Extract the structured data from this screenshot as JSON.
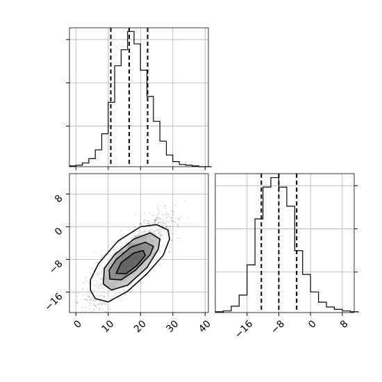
{
  "chart_data": [
    {
      "type": "histogram",
      "panel": "marginal-x",
      "grid": true,
      "bin_edges": [
        -2,
        0,
        2,
        4,
        6,
        8,
        10,
        12,
        14,
        16,
        18,
        20,
        22,
        24,
        26,
        28,
        30,
        32,
        34,
        36,
        38,
        40,
        42
      ],
      "counts": [
        1,
        2,
        5,
        11,
        23,
        45,
        88,
        138,
        160,
        185,
        168,
        132,
        96,
        62,
        35,
        16,
        7,
        3,
        2,
        1,
        0,
        0
      ],
      "quantiles": [
        10.8,
        16.5,
        22.2
      ],
      "xlim": [
        -2,
        41
      ],
      "ylim": [
        0,
        190
      ]
    },
    {
      "type": "histogram2d",
      "panel": "joint",
      "grid": true,
      "x_ticks": [
        0,
        10,
        20,
        30,
        40
      ],
      "y_ticks": [
        -16,
        -8,
        0,
        8
      ],
      "xlim": [
        -2,
        41
      ],
      "ylim": [
        -21,
        13
      ],
      "mean": [
        16.5,
        -8.0
      ],
      "density_bins": [
        {
          "x": 12,
          "y": -10,
          "w": 2,
          "h": 2,
          "level": 0.55
        },
        {
          "x": 14,
          "y": -10,
          "w": 2,
          "h": 2,
          "level": 0.7
        },
        {
          "x": 14,
          "y": -8,
          "w": 2,
          "h": 2,
          "level": 0.85
        },
        {
          "x": 16,
          "y": -8,
          "w": 2,
          "h": 2,
          "level": 0.9
        },
        {
          "x": 16,
          "y": -6,
          "w": 2,
          "h": 2,
          "level": 0.8
        },
        {
          "x": 18,
          "y": -6,
          "w": 2,
          "h": 2,
          "level": 0.75
        },
        {
          "x": 12,
          "y": -12,
          "w": 2,
          "h": 2,
          "level": 0.5
        },
        {
          "x": 14,
          "y": -12,
          "w": 2,
          "h": 2,
          "level": 0.55
        },
        {
          "x": 18,
          "y": -8,
          "w": 2,
          "h": 2,
          "level": 0.7
        },
        {
          "x": 12,
          "y": -8,
          "w": 2,
          "h": 2,
          "level": 0.4
        },
        {
          "x": 18,
          "y": -4,
          "w": 2,
          "h": 2,
          "level": 0.45
        },
        {
          "x": 20,
          "y": -4,
          "w": 2,
          "h": 2,
          "level": 0.4
        },
        {
          "x": 10,
          "y": -12,
          "w": 2,
          "h": 2,
          "level": 0.3
        },
        {
          "x": 16,
          "y": -10,
          "w": 2,
          "h": 2,
          "level": 0.6
        }
      ],
      "contours": [
        [
          [
            4.5,
            -15.5
          ],
          [
            6,
            -17.6
          ],
          [
            10,
            -18.4
          ],
          [
            16,
            -15.8
          ],
          [
            22,
            -11.5
          ],
          [
            27,
            -7
          ],
          [
            29,
            -3
          ],
          [
            28.5,
            -0.8
          ],
          [
            25,
            0.5
          ],
          [
            20,
            0
          ],
          [
            13,
            -3.5
          ],
          [
            7,
            -9
          ],
          [
            4.5,
            -13
          ]
        ],
        [
          [
            8.5,
            -14
          ],
          [
            11,
            -15.5
          ],
          [
            16,
            -14.3
          ],
          [
            22,
            -10
          ],
          [
            25.5,
            -5.5
          ],
          [
            26,
            -3
          ],
          [
            23,
            -1.5
          ],
          [
            18,
            -3
          ],
          [
            12,
            -6.8
          ],
          [
            8.8,
            -10.2
          ]
        ],
        [
          [
            10.5,
            -12.8
          ],
          [
            14,
            -13
          ],
          [
            18.5,
            -10.6
          ],
          [
            23,
            -6.8
          ],
          [
            24,
            -4.8
          ],
          [
            21.5,
            -3.8
          ],
          [
            17,
            -5
          ],
          [
            12.5,
            -8
          ],
          [
            10.3,
            -10.6
          ]
        ],
        [
          [
            12.5,
            -11.4
          ],
          [
            15.5,
            -11.5
          ],
          [
            19,
            -9.4
          ],
          [
            21.5,
            -7
          ],
          [
            20.8,
            -5.8
          ],
          [
            18,
            -6.4
          ],
          [
            14,
            -8.8
          ]
        ]
      ]
    },
    {
      "type": "histogram",
      "panel": "marginal-y",
      "grid": true,
      "x_ticks": [
        -16,
        -8,
        0,
        8
      ],
      "bin_edges": [
        -24,
        -22,
        -20,
        -18,
        -16,
        -14,
        -12,
        -10,
        -8,
        -6,
        -4,
        -2,
        0,
        2,
        4,
        6,
        8,
        10,
        12
      ],
      "counts": [
        1,
        2,
        8,
        22,
        60,
        118,
        158,
        170,
        158,
        134,
        78,
        48,
        26,
        13,
        7,
        4,
        2,
        1
      ],
      "quantiles": [
        -12.4,
        -8.0,
        -3.5
      ],
      "xlim": [
        -24,
        11
      ],
      "ylim": [
        0,
        175
      ]
    }
  ]
}
